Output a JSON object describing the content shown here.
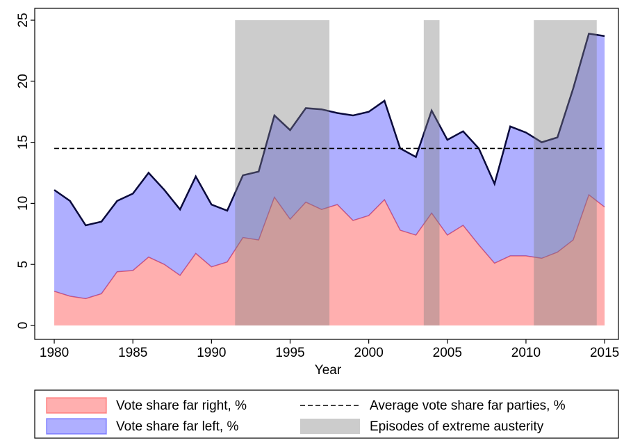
{
  "chart_data": {
    "type": "area",
    "stacked": true,
    "xlabel": "Year",
    "x": [
      1980,
      1981,
      1982,
      1983,
      1984,
      1985,
      1986,
      1987,
      1988,
      1989,
      1990,
      1991,
      1992,
      1993,
      1994,
      1995,
      1996,
      1997,
      1998,
      1999,
      2000,
      2001,
      2002,
      2003,
      2004,
      2005,
      2006,
      2007,
      2008,
      2009,
      2010,
      2011,
      2012,
      2013,
      2014,
      2015
    ],
    "series": [
      {
        "name": "Vote share far right, %",
        "color": "#ff4d4d",
        "line_color": "#e05a6a",
        "values": [
          2.8,
          2.4,
          2.2,
          2.6,
          4.4,
          4.5,
          5.6,
          5.0,
          4.1,
          5.9,
          4.8,
          5.2,
          7.2,
          7.0,
          10.5,
          8.7,
          10.1,
          9.5,
          9.9,
          8.6,
          9.0,
          10.3,
          7.8,
          7.4,
          9.2,
          7.4,
          8.2,
          6.6,
          5.1,
          5.7,
          5.7,
          5.5,
          6.0,
          7.0,
          10.7,
          9.7
        ]
      },
      {
        "name": "Vote share far left, %",
        "color": "#4d4dff",
        "line_color": "#0a0a3c",
        "values": [
          8.3,
          7.8,
          6.0,
          5.9,
          5.8,
          6.3,
          6.9,
          6.1,
          5.4,
          6.3,
          5.1,
          4.2,
          5.1,
          5.6,
          6.7,
          7.3,
          7.7,
          8.2,
          7.5,
          8.6,
          8.5,
          8.1,
          6.7,
          6.4,
          8.4,
          7.8,
          7.7,
          7.9,
          6.5,
          10.6,
          10.1,
          9.5,
          9.4,
          12.4,
          13.2,
          14.0
        ]
      }
    ],
    "average": {
      "name": "Average vote share far parties, %",
      "value": 14.5,
      "color": "#000000"
    },
    "episodes": {
      "name": "Episodes of extreme austerity",
      "color": "#808080",
      "ranges": [
        [
          1991.5,
          1997.5
        ],
        [
          2003.5,
          2004.5
        ],
        [
          2010.5,
          2014.5
        ]
      ]
    },
    "xlim": [
      1978.76,
      2015.88
    ],
    "ylim": [
      -1.14,
      25.97
    ],
    "xticks": [
      1980,
      1985,
      1990,
      1995,
      2000,
      2005,
      2010,
      2015
    ],
    "yticks": [
      0,
      5,
      10,
      15,
      20,
      25
    ]
  }
}
